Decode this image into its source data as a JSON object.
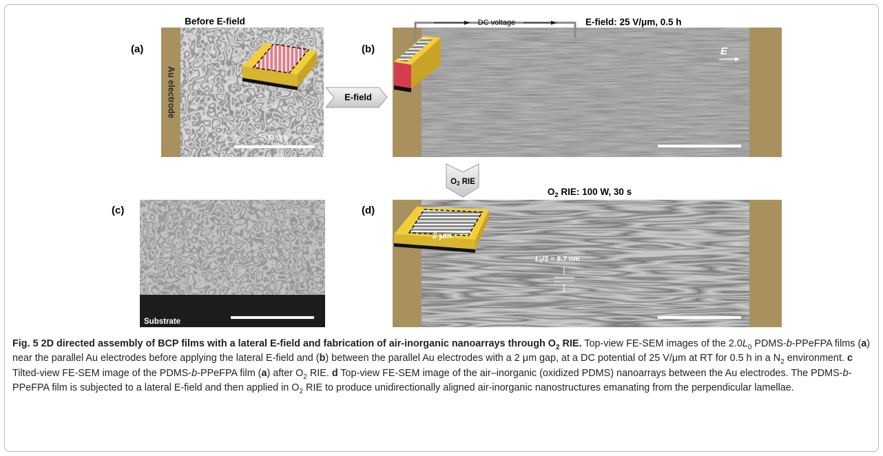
{
  "panels": {
    "a": {
      "label": "(a)",
      "title": "Before E-field",
      "electrode": "Au electrode",
      "scale": "500 nm"
    },
    "b": {
      "label": "(b)",
      "title": "E-field: 25 V/μm, 0.5 h",
      "voltage": "DC voltage",
      "field": "E"
    },
    "c": {
      "label": "(c)",
      "substrate": "Substrate"
    },
    "d": {
      "label": "(d)",
      "title": [
        "O",
        "2",
        " RIE: 100 W, 30 s"
      ],
      "gap": "2 μm",
      "period": [
        "L",
        "0",
        "/2 = 8.7 nm"
      ]
    }
  },
  "arrows": {
    "efield": "E-field",
    "rie": [
      "O",
      "2",
      " RIE"
    ]
  },
  "caption": {
    "title": [
      "Fig. 5 2D directed assembly of BCP films with a lateral E-field and fabrication of air-inorganic nanoarrays through O",
      "2",
      " RIE."
    ],
    "body": [
      " Top-view FE-SEM images of the 2.0",
      "L",
      "0",
      " PDMS-",
      "b",
      "-PPeFPA films (",
      "a",
      ") near the parallel Au electrodes before applying the lateral E-field and (",
      "b",
      ") between the parallel Au electrodes with a 2 μm gap, at a DC potential of 25 V/μm at RT for 0.5 h in a N",
      "2",
      " environment. ",
      "c",
      " Tilted-view FE-SEM image of the PDMS-",
      "b",
      "-PPeFPA film (",
      "a",
      ") after O",
      "2",
      " RIE. ",
      "d",
      " Top-view FE-SEM image of the air–inorganic (oxidized PDMS) nanoarrays between the Au electrodes. The PDMS-",
      "b",
      "-PPeFPA film is subjected to a lateral E-field and then applied in O",
      "2",
      " RIE to produce unidirectionally aligned air-inorganic nanostructures emanating from the perpendicular lamellae."
    ]
  }
}
